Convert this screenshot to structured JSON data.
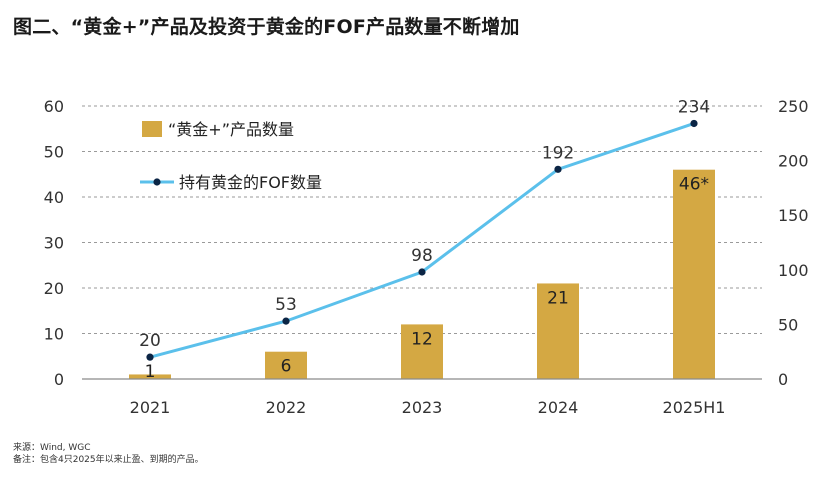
{
  "title": "图二、“黄金+”产品及投资于黄金的FOF产品数量不断增加",
  "source": "来源：Wind, WGC",
  "note": "备注：包含4只2025年以来止盈、到期的产品。",
  "colors": {
    "bar": "#D4A843",
    "line": "#5BC0EB",
    "marker": "#0B2545",
    "grid": "#9a9a9a"
  },
  "chart_data": {
    "type": "bar+line",
    "categories": [
      "2021",
      "2022",
      "2023",
      "2024",
      "2025H1"
    ],
    "series": [
      {
        "name": "“黄金+”产品数量",
        "type": "bar",
        "axis": "left",
        "values": [
          1,
          6,
          12,
          21,
          46
        ],
        "labels": [
          "1",
          "6",
          "12",
          "21",
          "46*"
        ]
      },
      {
        "name": "持有黄金的FOF数量",
        "type": "line",
        "axis": "right",
        "values": [
          20,
          53,
          98,
          192,
          234
        ],
        "labels": [
          "20",
          "53",
          "98",
          "192",
          "234"
        ]
      }
    ],
    "y_left": {
      "lim": [
        0,
        60
      ],
      "ticks": [
        "0",
        "10",
        "20",
        "30",
        "40",
        "50",
        "60"
      ]
    },
    "y_right": {
      "lim": [
        0,
        250
      ],
      "ticks": [
        "0",
        "50",
        "100",
        "150",
        "200",
        "250"
      ]
    },
    "grid": "horizontal-dashed",
    "legend": "top-left"
  }
}
